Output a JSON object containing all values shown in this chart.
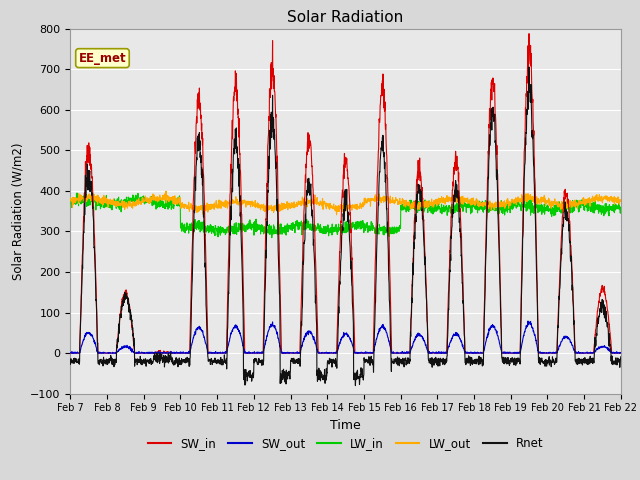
{
  "title": "Solar Radiation",
  "xlabel": "Time",
  "ylabel": "Solar Radiation (W/m2)",
  "ylim": [
    -100,
    800
  ],
  "yticks": [
    -100,
    0,
    100,
    200,
    300,
    400,
    500,
    600,
    700,
    800
  ],
  "n_days": 15,
  "pts_per_day": 144,
  "background_color": "#d8d8d8",
  "plot_bg_color": "#e8e8e8",
  "grid_color": "#ffffff",
  "colors": {
    "SW_in": "#dd0000",
    "SW_out": "#0000cc",
    "LW_in": "#00cc00",
    "LW_out": "#ffaa00",
    "Rnet": "#111111"
  },
  "annotation_text": "EE_met",
  "annotation_color": "#990000",
  "annotation_bg": "#ffffcc",
  "annotation_border": "#999900",
  "xtick_labels": [
    "Feb 7",
    "Feb 8",
    "Feb 9",
    "Feb 10",
    "Feb 11",
    "Feb 12",
    "Feb 13",
    "Feb 14",
    "Feb 15",
    "Feb 16",
    "Feb 17",
    "Feb 18",
    "Feb 19",
    "Feb 20",
    "Feb 21",
    "Feb 22"
  ]
}
